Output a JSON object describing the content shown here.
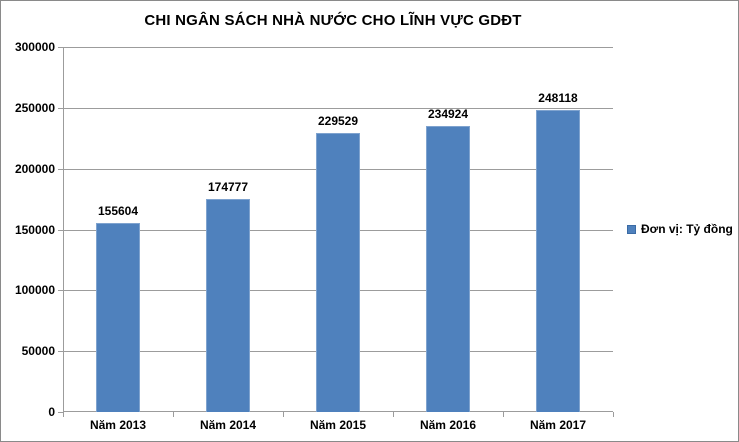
{
  "title": "CHI NGÂN SÁCH NHÀ NƯỚC CHO LĨNH VỰC GDĐT",
  "legend": {
    "label": "Đơn vị: Tỷ đồng",
    "marker_color": "#4f81bd"
  },
  "colors": {
    "bar_fill": "#4f81bd",
    "bar_border": "#7fa3cf",
    "gridline": "#9c9c9c",
    "axis": "#9c9c9c",
    "text": "#000000",
    "background": "#ffffff",
    "frame_border": "#8a8a8a"
  },
  "chart_data": {
    "type": "bar",
    "title": "CHI NGÂN SÁCH NHÀ NƯỚC CHO LĨNH VỰC GDĐT",
    "categories": [
      "Năm 2013",
      "Năm 2014",
      "Năm 2015",
      "Năm 2016",
      "Năm 2017"
    ],
    "values": [
      155604,
      174777,
      229529,
      234924,
      248118
    ],
    "value_labels": [
      "155604",
      "174777",
      "229529",
      "234924",
      "248118"
    ],
    "ytick_labels": [
      "0",
      "50000",
      "100000",
      "150000",
      "200000",
      "250000",
      "300000"
    ],
    "xlabel": "",
    "ylabel": "",
    "ylim": [
      0,
      300000
    ],
    "ytick_step": 50000,
    "grid": true,
    "legend_entries": [
      "Đơn vị: Tỷ đồng"
    ],
    "legend_position": "right",
    "bar_color": "#4f81bd"
  }
}
